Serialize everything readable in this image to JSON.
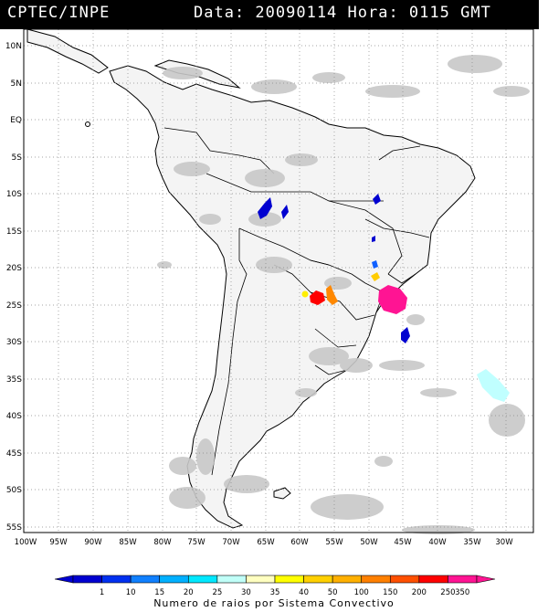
{
  "header": {
    "left_title": "CPTEC/INPE",
    "right_title": "Data: 20090114 Hora: 0115 GMT"
  },
  "map": {
    "lat_labels": [
      "10N",
      "5N",
      "EQ",
      "5S",
      "10S",
      "15S",
      "20S",
      "25S",
      "30S",
      "35S",
      "40S",
      "45S",
      "50S",
      "55S"
    ],
    "lon_labels": [
      "100W",
      "95W",
      "90W",
      "85W",
      "80W",
      "75W",
      "70W",
      "65W",
      "60W",
      "55W",
      "50W",
      "45W",
      "40W",
      "35W",
      "30W"
    ],
    "cloud_color": "#c8c8c8",
    "land_bg": "#f4f4f4",
    "ocean_bg": "#ffffff",
    "convective_systems": [
      {
        "name": "amazonas-west",
        "value": 1,
        "color": "#0000d0"
      },
      {
        "name": "amazonas-east",
        "value": 1,
        "color": "#0000d0"
      },
      {
        "name": "bahia",
        "value": 1,
        "color": "#0000d0"
      },
      {
        "name": "minas-north",
        "value": 1,
        "color": "#0000d0"
      },
      {
        "name": "sao-paulo-north",
        "value": 10,
        "color": "#1060ff"
      },
      {
        "name": "sao-paulo-center",
        "value": 40,
        "color": "#ffcc00"
      },
      {
        "name": "paraguay",
        "value": 40,
        "color": "#ffee00"
      },
      {
        "name": "parana",
        "value": 150,
        "color": "#ff8800"
      },
      {
        "name": "argentina-ne",
        "value": 350,
        "color": "#ff0000"
      },
      {
        "name": "sao-paulo-coast",
        "value": 350,
        "color": "#ff1493"
      },
      {
        "name": "atlantic-south",
        "value": 1,
        "color": "#0000d0"
      },
      {
        "name": "atlantic-far",
        "value": 25,
        "color": "#c0ffff"
      }
    ]
  },
  "colorbar": {
    "labels": [
      "1",
      "10",
      "15",
      "20",
      "25",
      "30",
      "35",
      "40",
      "50",
      "100",
      "150",
      "200",
      "250",
      "350"
    ],
    "colors": [
      "#0000d0",
      "#0030f0",
      "#1080ff",
      "#00b0ff",
      "#00e8ff",
      "#c0fff8",
      "#ffffc0",
      "#ffff00",
      "#ffd000",
      "#ffb000",
      "#ff8000",
      "#ff5000",
      "#ff0000",
      "#ff1493"
    ],
    "title": "Numero de raios por Sistema Convectivo"
  }
}
